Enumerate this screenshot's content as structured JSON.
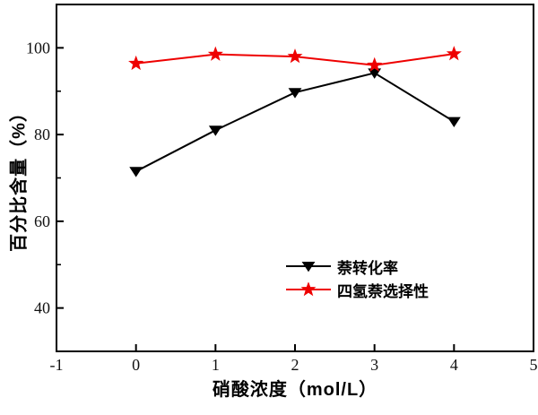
{
  "chart_data": {
    "type": "line",
    "title": "",
    "xlabel": "硝酸浓度（mol/L）",
    "ylabel": "百分比含量（%）",
    "x": [
      0,
      1,
      2,
      3,
      4
    ],
    "series": [
      {
        "name": "萘转化率",
        "color": "#000000",
        "marker": "triangle-down",
        "values": [
          71.5,
          81,
          89.7,
          94.2,
          83
        ]
      },
      {
        "name": "四氢萘选择性",
        "color": "#ee0000",
        "marker": "star",
        "values": [
          96.4,
          98.5,
          98,
          96,
          98.6
        ]
      }
    ],
    "xlim": [
      -1,
      5
    ],
    "ylim": [
      30,
      110
    ],
    "x_ticks": [
      -1,
      0,
      1,
      2,
      3,
      4,
      5
    ],
    "y_ticks": [
      40,
      60,
      80,
      100
    ],
    "y_minor_ticks": [
      50,
      70,
      90
    ],
    "grid": false,
    "legend_position": "inside lower-right",
    "frame_color": "#000000",
    "tick_label_color": "#111111"
  }
}
